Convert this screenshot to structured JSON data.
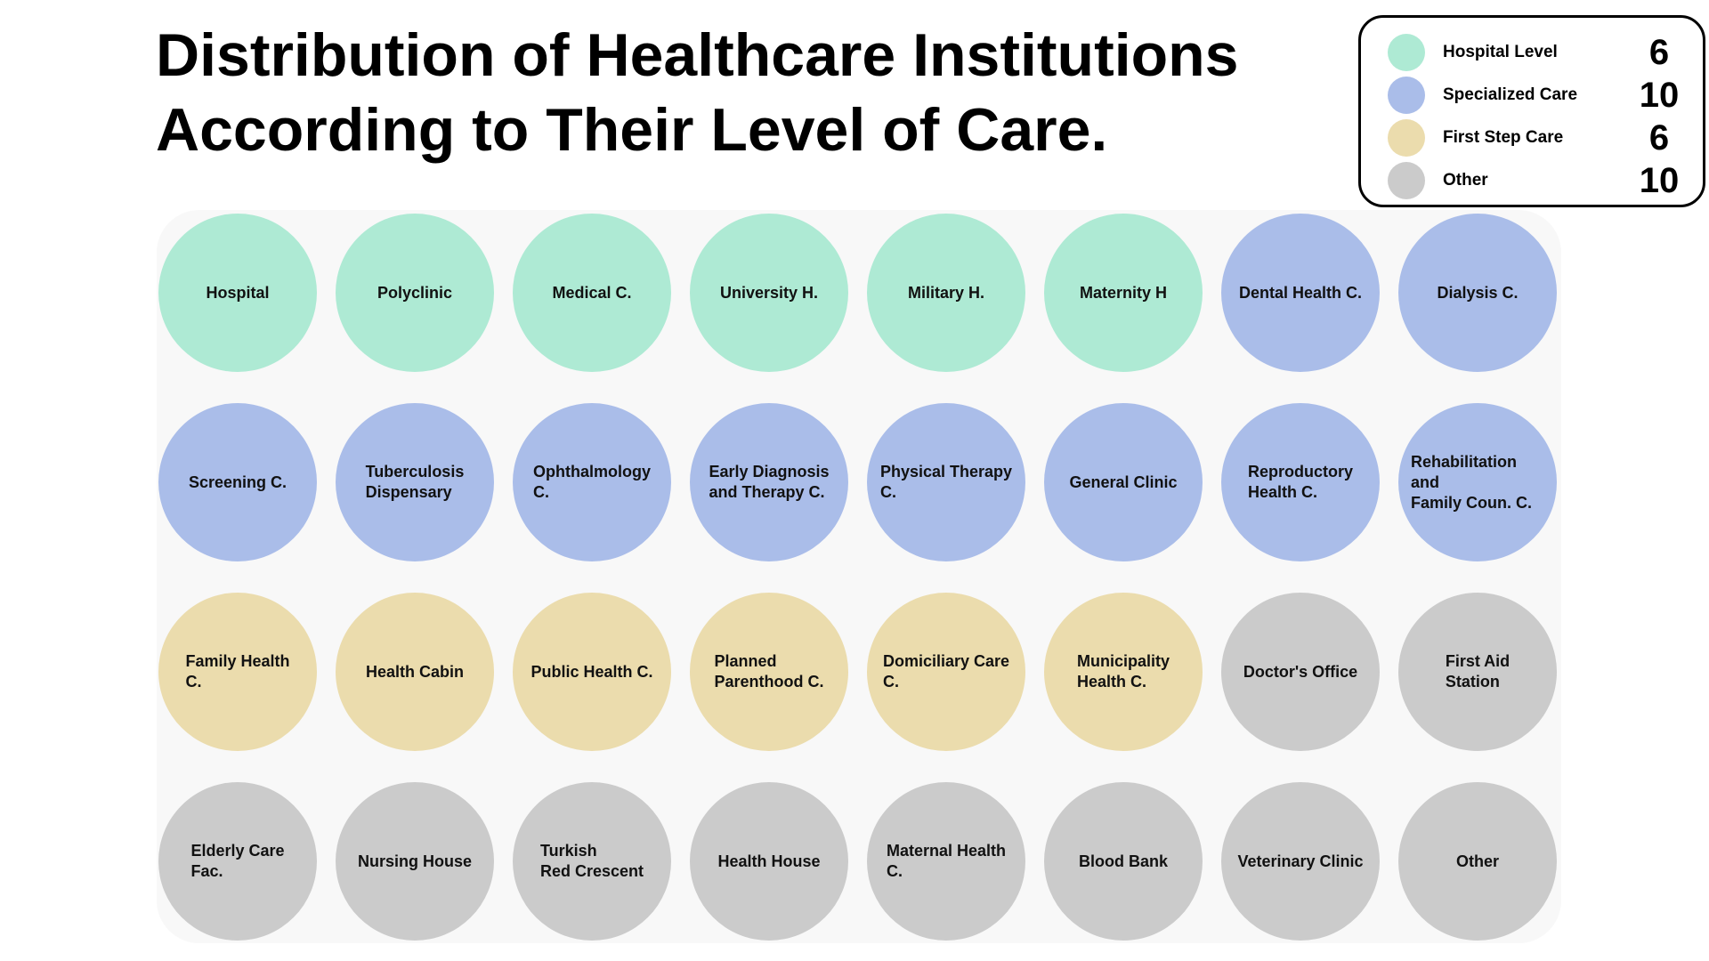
{
  "title": {
    "line1": "Distribution of Healthcare Institutions",
    "line2": "According to Their Level of Care."
  },
  "colors": {
    "hospital": "#aeead4",
    "specialized": "#aabde9",
    "first_step": "#ebdcad",
    "other": "#cbcbcb"
  },
  "legend": [
    {
      "label": "Hospital Level",
      "count": "6",
      "category": "hospital",
      "color": "#aeead4"
    },
    {
      "label": "Specialized Care",
      "count": "10",
      "category": "specialized",
      "color": "#aabde9"
    },
    {
      "label": "First Step Care",
      "count": "6",
      "category": "first_step",
      "color": "#ebdcad"
    },
    {
      "label": "Other",
      "count": "10",
      "category": "other",
      "color": "#cbcbcb"
    }
  ],
  "institutions": [
    {
      "label": "Hospital",
      "category": "hospital"
    },
    {
      "label": "Polyclinic",
      "category": "hospital"
    },
    {
      "label": "Medical C.",
      "category": "hospital"
    },
    {
      "label": "University H.",
      "category": "hospital"
    },
    {
      "label": "Military H.",
      "category": "hospital"
    },
    {
      "label": "Maternity H",
      "category": "hospital"
    },
    {
      "label": "Dental Health C.",
      "category": "specialized"
    },
    {
      "label": "Dialysis C.",
      "category": "specialized"
    },
    {
      "label": "Screening C.",
      "category": "specialized"
    },
    {
      "label": "Tuberculosis\nDispensary",
      "category": "specialized"
    },
    {
      "label": "Ophthalmology\nC.",
      "category": "specialized"
    },
    {
      "label": "Early Diagnosis\nand Therapy C.",
      "category": "specialized"
    },
    {
      "label": "Physical Therapy\nC.",
      "category": "specialized"
    },
    {
      "label": "General Clinic",
      "category": "specialized"
    },
    {
      "label": "Reproductory\nHealth C.",
      "category": "specialized"
    },
    {
      "label": "Rehabilitation and\nFamily Coun. C.",
      "category": "specialized"
    },
    {
      "label": "Family Health\nC.",
      "category": "first_step"
    },
    {
      "label": "Health Cabin",
      "category": "first_step"
    },
    {
      "label": "Public Health C.",
      "category": "first_step"
    },
    {
      "label": "Planned\nParenthood C.",
      "category": "first_step"
    },
    {
      "label": "Domiciliary Care\nC.",
      "category": "first_step"
    },
    {
      "label": "Municipality\nHealth C.",
      "category": "first_step"
    },
    {
      "label": "Doctor's Office",
      "category": "other"
    },
    {
      "label": "First Aid\nStation",
      "category": "other"
    },
    {
      "label": "Elderly Care\nFac.",
      "category": "other"
    },
    {
      "label": "Nursing House",
      "category": "other"
    },
    {
      "label": "Turkish\nRed Crescent",
      "category": "other"
    },
    {
      "label": "Health House",
      "category": "other"
    },
    {
      "label": "Maternal Health\nC.",
      "category": "other"
    },
    {
      "label": "Blood Bank",
      "category": "other"
    },
    {
      "label": "Veterinary Clinic",
      "category": "other"
    },
    {
      "label": "Other",
      "category": "other"
    }
  ]
}
